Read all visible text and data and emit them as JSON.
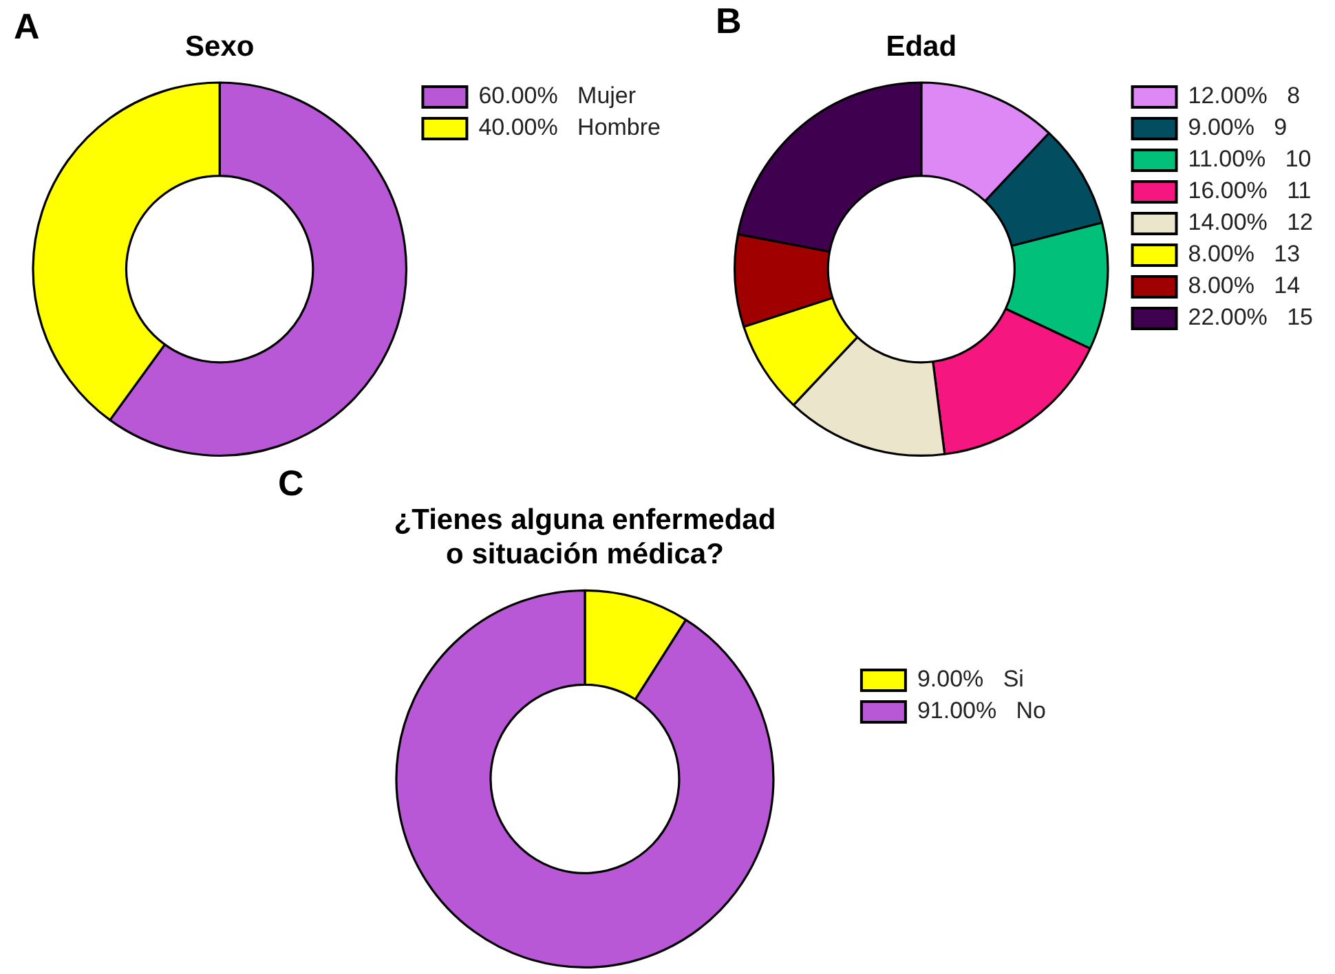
{
  "chart_data": [
    {
      "type": "donut",
      "title": "Sexo",
      "annotations": [
        "A"
      ],
      "categories": [
        "Mujer",
        "Hombre"
      ],
      "values": [
        60,
        40
      ],
      "value_labels": [
        "60.00%",
        "40.00%"
      ],
      "colors": [
        "#b858d6",
        "#ffff00"
      ],
      "legend": "top right"
    },
    {
      "type": "donut",
      "title": "Edad",
      "annotations": [
        "B"
      ],
      "categories": [
        "8",
        "9",
        "10",
        "11",
        "12",
        "13",
        "14",
        "15"
      ],
      "values": [
        12,
        9,
        11,
        16,
        14,
        8,
        8,
        22
      ],
      "value_labels": [
        "12.00%",
        "9.00%",
        "11.00%",
        "16.00%",
        "14.00%",
        "8.00%",
        "8.00%",
        "22.00%"
      ],
      "colors": [
        "#dd88f5",
        "#034d60",
        "#00c07a",
        "#f5167f",
        "#ebe6cb",
        "#ffff00",
        "#a00000",
        "#400050"
      ],
      "legend": "top right"
    },
    {
      "type": "donut",
      "title": "¿Tienes alguna enfermedad\no situación médica?",
      "annotations": [
        "C"
      ],
      "categories": [
        "Si",
        "No"
      ],
      "values": [
        9,
        91
      ],
      "value_labels": [
        "9.00%",
        "91.00%"
      ],
      "colors": [
        "#ffff00",
        "#b858d6"
      ],
      "legend": "right"
    }
  ]
}
